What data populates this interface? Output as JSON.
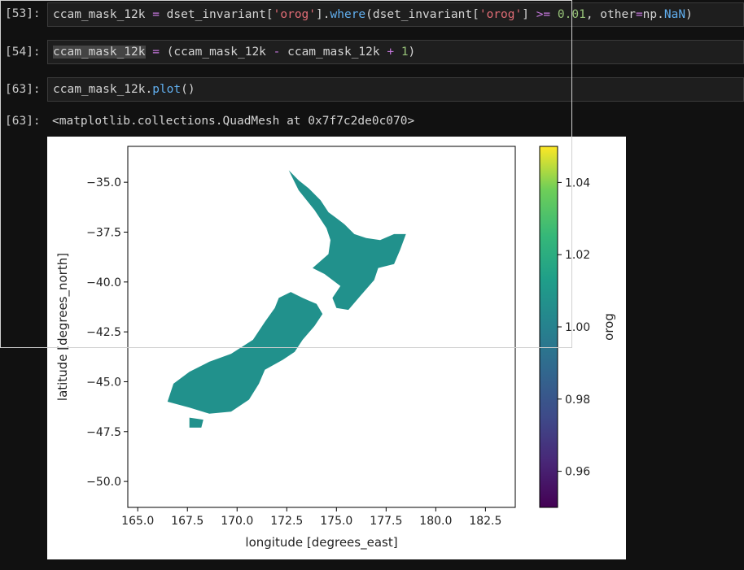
{
  "cells": [
    {
      "prompt": "[53]:",
      "tokens": [
        {
          "t": "ccam_mask_12k ",
          "c": ""
        },
        {
          "t": "=",
          "c": "op"
        },
        {
          "t": " dset_invariant[",
          "c": ""
        },
        {
          "t": "'orog'",
          "c": "str"
        },
        {
          "t": "].",
          "c": ""
        },
        {
          "t": "where",
          "c": "fn"
        },
        {
          "t": "(dset_invariant[",
          "c": ""
        },
        {
          "t": "'orog'",
          "c": "str"
        },
        {
          "t": "] ",
          "c": ""
        },
        {
          "t": ">=",
          "c": "op"
        },
        {
          "t": " ",
          "c": ""
        },
        {
          "t": "0.01",
          "c": "num"
        },
        {
          "t": ", other",
          "c": ""
        },
        {
          "t": "=",
          "c": "op"
        },
        {
          "t": "np.",
          "c": ""
        },
        {
          "t": "NaN",
          "c": "kw"
        },
        {
          "t": ")",
          "c": ""
        }
      ]
    },
    {
      "prompt": "[54]:",
      "tokens": [
        {
          "t": "ccam_mask_12k",
          "c": "sel"
        },
        {
          "t": " ",
          "c": ""
        },
        {
          "t": "=",
          "c": "op"
        },
        {
          "t": " (ccam_mask_12k ",
          "c": ""
        },
        {
          "t": "-",
          "c": "op"
        },
        {
          "t": " ccam_mask_12k ",
          "c": ""
        },
        {
          "t": "+",
          "c": "op"
        },
        {
          "t": " ",
          "c": ""
        },
        {
          "t": "1",
          "c": "num"
        },
        {
          "t": ")",
          "c": ""
        }
      ]
    },
    {
      "prompt": "[63]:",
      "tokens": [
        {
          "t": "ccam_mask_12k.",
          "c": ""
        },
        {
          "t": "plot",
          "c": "fn"
        },
        {
          "t": "()",
          "c": ""
        }
      ]
    }
  ],
  "output": {
    "prompt": "[63]:",
    "text": "<matplotlib.collections.QuadMesh at 0x7f7c2de0c070>"
  },
  "chart_data": {
    "type": "heatmap",
    "xlabel": "longitude [degrees_east]",
    "ylabel": "latitude [degrees_north]",
    "xlim": [
      164.5,
      184.0
    ],
    "ylim": [
      -51.3,
      -33.2
    ],
    "xticks": [
      165.0,
      167.5,
      170.0,
      172.5,
      175.0,
      177.5,
      180.0,
      182.5
    ],
    "xticklabels": [
      "165.0",
      "167.5",
      "170.0",
      "172.5",
      "175.0",
      "177.5",
      "180.0",
      "182.5"
    ],
    "yticks": [
      -35.0,
      -37.5,
      -40.0,
      -42.5,
      -45.0,
      -47.5,
      -50.0
    ],
    "yticklabels": [
      "−35.0",
      "−37.5",
      "−40.0",
      "−42.5",
      "−45.0",
      "−47.5",
      "−50.0"
    ],
    "colorbar": {
      "label": "orog",
      "range": [
        0.95,
        1.05
      ],
      "ticks": [
        0.96,
        0.98,
        1.0,
        1.02,
        1.04
      ],
      "ticklabels": [
        "0.96",
        "0.98",
        "1.00",
        "1.02",
        "1.04"
      ],
      "colormap": "viridis"
    },
    "value": 1.0,
    "fill_color": "#21918c",
    "regions": [
      {
        "name": "north-island",
        "polygon": [
          [
            172.6,
            -34.4
          ],
          [
            173.1,
            -34.9
          ],
          [
            173.6,
            -35.3
          ],
          [
            174.2,
            -35.9
          ],
          [
            174.6,
            -36.5
          ],
          [
            175.0,
            -36.8
          ],
          [
            175.4,
            -37.1
          ],
          [
            175.9,
            -37.6
          ],
          [
            176.5,
            -37.8
          ],
          [
            177.2,
            -37.9
          ],
          [
            177.9,
            -37.6
          ],
          [
            178.5,
            -37.6
          ],
          [
            178.2,
            -38.4
          ],
          [
            177.9,
            -39.1
          ],
          [
            177.1,
            -39.3
          ],
          [
            176.9,
            -39.9
          ],
          [
            176.2,
            -40.7
          ],
          [
            175.6,
            -41.4
          ],
          [
            175.0,
            -41.3
          ],
          [
            174.8,
            -40.8
          ],
          [
            175.2,
            -40.2
          ],
          [
            174.4,
            -39.6
          ],
          [
            173.8,
            -39.3
          ],
          [
            174.6,
            -38.6
          ],
          [
            174.7,
            -37.9
          ],
          [
            174.5,
            -37.3
          ],
          [
            173.9,
            -36.4
          ],
          [
            173.1,
            -35.4
          ]
        ]
      },
      {
        "name": "south-island",
        "polygon": [
          [
            172.7,
            -40.5
          ],
          [
            173.3,
            -40.8
          ],
          [
            174.0,
            -41.1
          ],
          [
            174.3,
            -41.6
          ],
          [
            173.9,
            -42.2
          ],
          [
            173.3,
            -42.9
          ],
          [
            172.9,
            -43.5
          ],
          [
            172.3,
            -43.9
          ],
          [
            171.4,
            -44.4
          ],
          [
            171.1,
            -45.1
          ],
          [
            170.6,
            -45.9
          ],
          [
            169.7,
            -46.5
          ],
          [
            168.6,
            -46.6
          ],
          [
            167.6,
            -46.3
          ],
          [
            166.5,
            -46.0
          ],
          [
            166.8,
            -45.1
          ],
          [
            167.6,
            -44.5
          ],
          [
            168.6,
            -44.0
          ],
          [
            169.7,
            -43.6
          ],
          [
            170.8,
            -42.9
          ],
          [
            171.4,
            -42.0
          ],
          [
            171.9,
            -41.3
          ],
          [
            172.1,
            -40.8
          ]
        ]
      },
      {
        "name": "stewart-island",
        "polygon": [
          [
            167.6,
            -46.8
          ],
          [
            168.3,
            -46.9
          ],
          [
            168.2,
            -47.3
          ],
          [
            167.6,
            -47.3
          ]
        ]
      }
    ]
  }
}
